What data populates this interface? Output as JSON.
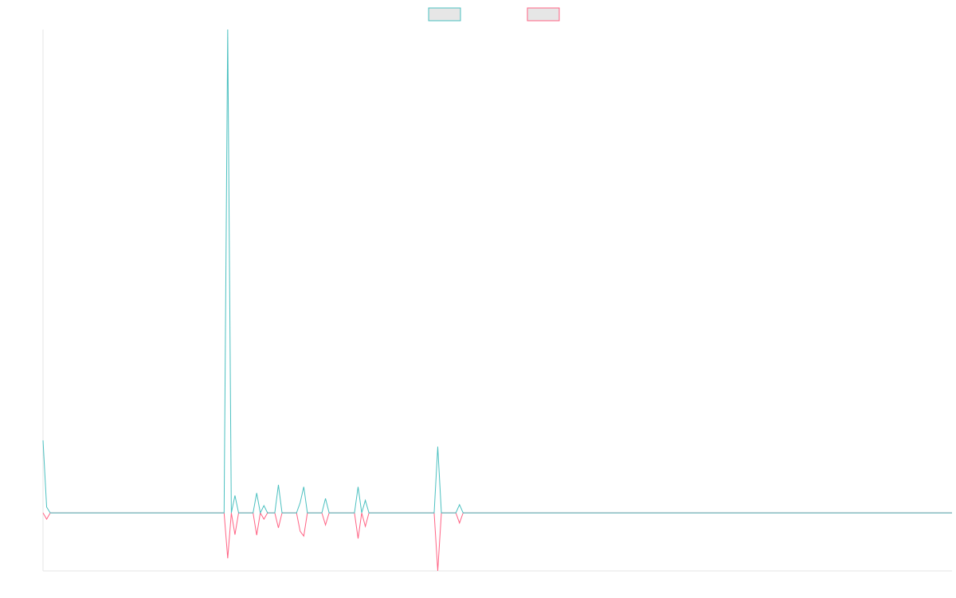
{
  "chart_data": {
    "type": "line",
    "categories": [
      null,
      null,
      null,
      null,
      null,
      null,
      null,
      null,
      null,
      null,
      null,
      null,
      null,
      null,
      null,
      null,
      null,
      null,
      null,
      null,
      null,
      null,
      null,
      null,
      null,
      null,
      null,
      null,
      null,
      null,
      null,
      null,
      null,
      null,
      null,
      null,
      null,
      null,
      null,
      null,
      null,
      null,
      null,
      null,
      null,
      null,
      null,
      null,
      null,
      null,
      null,
      null,
      null,
      null,
      null,
      null,
      null,
      null,
      null,
      null,
      null,
      null,
      null,
      null,
      null,
      null,
      null,
      null,
      null,
      null,
      null,
      null,
      null,
      null,
      null,
      null,
      null,
      null,
      null,
      null,
      null,
      null,
      null,
      null,
      null,
      null,
      null,
      null,
      null,
      null,
      null,
      null,
      null,
      null,
      null,
      null,
      null,
      null,
      null,
      null,
      null,
      null,
      null,
      null,
      null,
      null,
      null,
      null,
      null,
      null,
      null,
      null,
      null,
      null,
      null,
      null,
      null,
      null,
      null,
      null,
      null,
      null,
      null,
      null,
      null,
      null,
      null,
      null,
      null,
      null,
      null,
      null,
      null,
      null,
      null,
      null,
      null,
      null,
      null,
      null,
      null,
      null,
      null,
      null,
      null,
      null,
      null,
      null,
      null,
      null,
      null,
      null,
      null,
      null,
      null,
      null,
      null,
      null,
      null,
      null,
      null,
      null,
      null,
      null,
      null,
      null,
      null,
      null,
      null,
      null,
      null,
      null,
      null,
      null,
      null,
      null,
      null,
      null,
      null,
      null,
      null,
      null,
      null,
      null,
      null,
      null,
      null,
      null,
      null,
      null,
      null,
      null,
      null,
      null,
      null,
      null,
      null,
      null,
      null,
      null,
      null,
      null,
      null,
      null,
      null,
      null,
      null,
      null,
      null,
      null,
      null,
      null,
      null,
      null,
      null,
      null,
      null,
      null,
      null,
      null,
      null,
      null,
      null,
      null,
      null,
      null,
      null,
      null,
      null,
      null,
      null,
      null,
      null,
      null,
      null,
      null,
      null,
      null,
      null,
      null,
      null,
      null,
      null,
      null,
      null,
      null,
      null,
      null,
      null,
      null,
      null,
      null
    ],
    "series": [
      {
        "color": "#4bc0c0",
        "values": [
          15,
          1.2,
          0,
          0,
          0,
          0,
          0,
          0,
          0,
          0,
          0,
          0,
          0,
          0,
          0,
          0,
          0,
          0,
          0,
          0,
          0,
          0,
          0,
          0,
          0,
          0,
          0,
          0,
          0,
          0,
          0,
          0,
          0,
          0,
          0,
          0,
          0,
          0,
          0,
          0,
          0,
          0,
          0,
          0,
          0,
          0,
          0,
          0,
          0,
          0,
          0,
          100,
          0,
          3.6,
          0,
          0,
          0,
          0,
          0,
          4.1,
          0,
          1.5,
          0,
          0,
          0,
          5.8,
          0,
          0,
          0,
          0,
          0,
          2.1,
          5.4,
          0,
          0,
          0,
          0,
          0,
          3,
          0,
          0,
          0,
          0,
          0,
          0,
          0,
          0,
          5.4,
          0,
          2.6,
          0,
          0,
          0,
          0,
          0,
          0,
          0,
          0,
          0,
          0,
          0,
          0,
          0,
          0,
          0,
          0,
          0,
          0,
          0,
          13.7,
          0,
          0,
          0,
          0,
          0,
          1.7,
          0,
          0,
          0,
          0,
          0,
          0,
          0,
          0,
          0,
          0,
          0,
          0,
          0,
          0,
          0,
          0,
          0,
          0,
          0,
          0,
          0,
          0,
          0,
          0,
          0,
          0,
          0,
          0,
          0,
          0,
          0,
          0,
          0,
          0,
          0,
          0,
          0,
          0,
          0,
          0,
          0,
          0,
          0,
          0,
          0,
          0,
          0,
          0,
          0,
          0,
          0,
          0,
          0,
          0,
          0,
          0,
          0,
          0,
          0,
          0,
          0,
          0,
          0,
          0,
          0,
          0,
          0,
          0,
          0,
          0,
          0,
          0,
          0,
          0,
          0,
          0,
          0,
          0,
          0,
          0,
          0,
          0,
          0,
          0,
          0,
          0,
          0,
          0,
          0,
          0,
          0,
          0,
          0,
          0,
          0,
          0,
          0,
          0,
          0,
          0,
          0,
          0,
          0,
          0,
          0,
          0,
          0,
          0,
          0,
          0,
          0,
          0,
          0,
          0,
          0,
          0,
          0,
          0,
          0,
          0,
          0,
          0,
          0,
          0,
          0,
          0,
          0,
          0,
          0,
          0,
          0,
          0,
          0,
          0,
          0,
          0
        ]
      },
      {
        "color": "#ff6384",
        "values": [
          0,
          -1.3,
          0,
          0,
          0,
          0,
          0,
          0,
          0,
          0,
          0,
          0,
          0,
          0,
          0,
          0,
          0,
          0,
          0,
          0,
          0,
          0,
          0,
          0,
          0,
          0,
          0,
          0,
          0,
          0,
          0,
          0,
          0,
          0,
          0,
          0,
          0,
          0,
          0,
          0,
          0,
          0,
          0,
          0,
          0,
          0,
          0,
          0,
          0,
          0,
          0,
          -9.4,
          0,
          -4.5,
          0,
          0,
          0,
          0,
          0,
          -4.6,
          0,
          -1.3,
          0,
          0,
          0,
          -3.1,
          0,
          0,
          0,
          0,
          0,
          -3.8,
          -4.8,
          0,
          0,
          0,
          0,
          0,
          -2.5,
          0,
          0,
          0,
          0,
          0,
          0,
          0,
          0,
          -5.3,
          0,
          -2.8,
          0,
          0,
          0,
          0,
          0,
          0,
          0,
          0,
          0,
          0,
          0,
          0,
          0,
          0,
          0,
          0,
          0,
          0,
          0,
          -12,
          0,
          0,
          0,
          0,
          0,
          -2.1,
          0,
          0,
          0,
          0,
          0,
          0,
          0,
          0,
          0,
          0,
          0,
          0,
          0,
          0,
          0,
          0,
          0,
          0,
          0,
          0,
          0,
          0,
          0,
          0,
          0,
          0,
          0,
          0,
          0,
          0,
          0,
          0,
          0,
          0,
          0,
          0,
          0,
          0,
          0,
          0,
          0,
          0,
          0,
          0,
          0,
          0,
          0,
          0,
          0,
          0,
          0,
          0,
          0,
          0,
          0,
          0,
          0,
          0,
          0,
          0,
          0,
          0,
          0,
          0,
          0,
          0,
          0,
          0,
          0,
          0,
          0,
          0,
          0,
          0,
          0,
          0,
          0,
          0,
          0,
          0,
          0,
          0,
          0,
          0,
          0,
          0,
          0,
          0,
          0,
          0,
          0,
          0,
          0,
          0,
          0,
          0,
          0,
          0,
          0,
          0,
          0,
          0,
          0,
          0,
          0,
          0,
          0,
          0,
          0,
          0,
          0,
          0,
          0,
          0,
          0,
          0,
          0,
          0,
          0,
          0,
          0,
          0,
          0,
          0,
          0,
          0,
          0,
          0,
          0,
          0,
          0,
          0,
          0,
          0,
          0,
          0
        ]
      }
    ],
    "ylim": [
      -12,
      100
    ]
  }
}
